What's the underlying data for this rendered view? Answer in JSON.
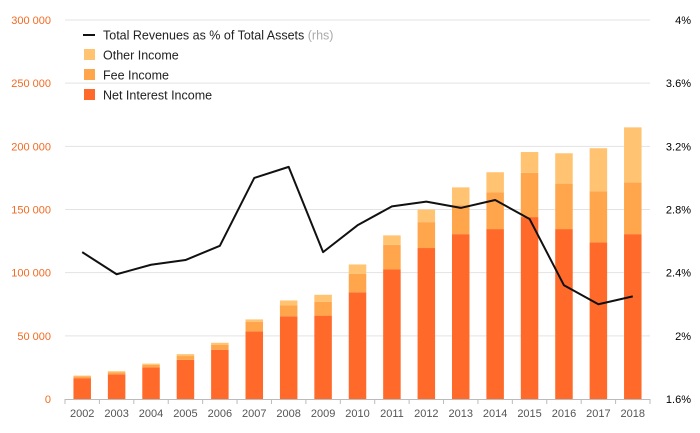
{
  "chart_data": {
    "type": "bar",
    "stacked": true,
    "categories": [
      "2002",
      "2003",
      "2004",
      "2005",
      "2006",
      "2007",
      "2008",
      "2009",
      "2010",
      "2011",
      "2012",
      "2013",
      "2014",
      "2015",
      "2016",
      "2017",
      "2018"
    ],
    "series": [
      {
        "name": "Net Interest Income",
        "color": "#ff6a2a",
        "values": [
          16500,
          19500,
          25000,
          31000,
          39000,
          53500,
          65500,
          66000,
          84500,
          102500,
          119500,
          130500,
          134500,
          144000,
          134500,
          124000,
          130500
        ]
      },
      {
        "name": "Fee Income",
        "color": "#ffa64d",
        "values": [
          1500,
          1500,
          2000,
          3000,
          4000,
          7500,
          8500,
          11000,
          14500,
          19500,
          20500,
          23000,
          29000,
          35000,
          36000,
          40500,
          41000
        ]
      },
      {
        "name": "Other Income",
        "color": "#ffc372",
        "values": [
          500,
          1000,
          1000,
          1500,
          1500,
          2000,
          4000,
          5500,
          7500,
          7500,
          10000,
          14000,
          16000,
          16500,
          24000,
          34000,
          43500
        ]
      }
    ],
    "line_series": {
      "name": "Total Revenues as % of Total Assets",
      "suffix": "(rhs)",
      "color": "#111111",
      "values": [
        2.53,
        2.39,
        2.45,
        2.48,
        2.57,
        3.0,
        3.07,
        2.53,
        2.7,
        2.82,
        2.85,
        2.81,
        2.86,
        2.74,
        2.32,
        2.2,
        2.25
      ]
    },
    "y_left": {
      "ylim": [
        0,
        300000
      ],
      "ticks": [
        "0",
        "50 000",
        "100 000",
        "150 000",
        "200 000",
        "250 000",
        "300 000"
      ],
      "tick_values": [
        0,
        50000,
        100000,
        150000,
        200000,
        250000,
        300000
      ],
      "color": "#f26a22"
    },
    "y_right": {
      "ylim": [
        1.6,
        4.0
      ],
      "ticks": [
        "1.6%",
        "2%",
        "2.4%",
        "2.8%",
        "3.2%",
        "3.6%",
        "4%"
      ],
      "tick_values": [
        1.6,
        2.0,
        2.4,
        2.8,
        3.2,
        3.6,
        4.0
      ],
      "color": "#000000"
    },
    "grid": true,
    "legend_position": "top-left",
    "title": "",
    "xlabel": "",
    "ylabel": ""
  }
}
